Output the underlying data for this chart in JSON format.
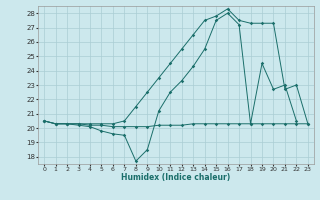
{
  "xlabel": "Humidex (Indice chaleur)",
  "bg_color": "#cce8ed",
  "grid_color": "#aacdd4",
  "line_color": "#1a6e6a",
  "xlim": [
    -0.5,
    23.5
  ],
  "ylim": [
    17.5,
    28.5
  ],
  "yticks": [
    18,
    19,
    20,
    21,
    22,
    23,
    24,
    25,
    26,
    27,
    28
  ],
  "xticks": [
    0,
    1,
    2,
    3,
    4,
    5,
    6,
    7,
    8,
    9,
    10,
    11,
    12,
    13,
    14,
    15,
    16,
    17,
    18,
    19,
    20,
    21,
    22,
    23
  ],
  "series": [
    {
      "x": [
        0,
        1,
        2,
        3,
        4,
        5,
        6,
        7,
        8,
        9,
        10,
        11,
        12,
        13,
        14,
        15,
        16,
        17,
        18,
        19,
        20,
        21,
        22,
        23
      ],
      "y": [
        20.5,
        20.3,
        20.3,
        20.3,
        20.2,
        20.2,
        20.1,
        20.1,
        20.1,
        20.1,
        20.2,
        20.2,
        20.2,
        20.3,
        20.3,
        20.3,
        20.3,
        20.3,
        20.3,
        20.3,
        20.3,
        20.3,
        20.3,
        20.3
      ]
    },
    {
      "x": [
        0,
        1,
        2,
        3,
        4,
        5,
        6,
        7,
        8,
        9,
        10,
        11,
        12,
        13,
        14,
        15,
        16,
        17,
        18,
        19,
        20,
        21,
        22,
        23
      ],
      "y": [
        20.5,
        20.3,
        20.3,
        20.2,
        20.1,
        19.8,
        19.6,
        19.5,
        17.7,
        18.5,
        21.2,
        22.5,
        23.3,
        24.3,
        25.5,
        27.5,
        28.0,
        27.2,
        20.3,
        24.5,
        22.7,
        23.0,
        20.5,
        null
      ]
    },
    {
      "x": [
        0,
        1,
        2,
        3,
        4,
        5,
        6,
        7,
        8,
        9,
        10,
        11,
        12,
        13,
        14,
        15,
        16,
        17,
        18,
        19,
        20,
        21,
        22,
        23
      ],
      "y": [
        20.5,
        20.3,
        20.3,
        20.3,
        20.3,
        20.3,
        20.3,
        20.5,
        21.5,
        22.5,
        23.5,
        24.5,
        25.5,
        26.5,
        27.5,
        27.8,
        28.3,
        27.5,
        27.3,
        27.3,
        27.3,
        22.7,
        23.0,
        20.3
      ]
    }
  ]
}
